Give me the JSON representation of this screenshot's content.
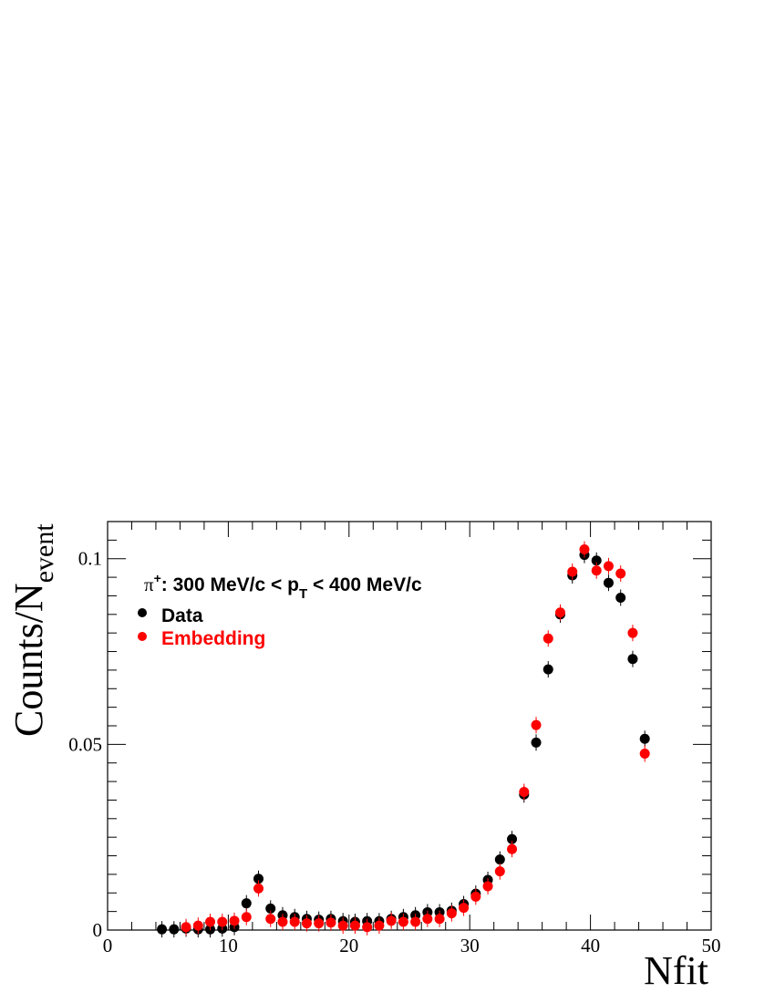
{
  "chart_data": {
    "type": "scatter",
    "xlabel": "Nfit",
    "ylabel_main": "Counts/N",
    "ylabel_sub": "event",
    "xlim": [
      0,
      50
    ],
    "ylim": [
      0,
      0.11
    ],
    "x_ticks": [
      0,
      10,
      20,
      30,
      40,
      50
    ],
    "x_tick_labels": [
      "0",
      "10",
      "20",
      "30",
      "40",
      "50"
    ],
    "y_ticks": [
      0,
      0.05,
      0.1
    ],
    "y_tick_labels": [
      "0",
      "0.05",
      "0.1"
    ],
    "grid": false,
    "legend_position": "top-left",
    "annotation": {
      "prefix": "π",
      "charge": "+",
      "mid": ": 300 MeV/c < p",
      "sub": "T",
      "suffix": " < 400 MeV/c"
    },
    "series": [
      {
        "name": "Data",
        "color": "#000000",
        "x": [
          4.5,
          5.5,
          6.5,
          7.5,
          8.5,
          9.5,
          10.5,
          11.5,
          12.5,
          13.5,
          14.5,
          15.5,
          16.5,
          17.5,
          18.5,
          19.5,
          20.5,
          21.5,
          22.5,
          23.5,
          24.5,
          25.5,
          26.5,
          27.5,
          28.5,
          29.5,
          30.5,
          31.5,
          32.5,
          33.5,
          34.5,
          35.5,
          36.5,
          37.5,
          38.5,
          39.5,
          40.5,
          41.5,
          42.5,
          43.5,
          44.5
        ],
        "y": [
          0.0002,
          0.0002,
          0.0004,
          0.0002,
          0.0002,
          0.0004,
          0.0008,
          0.0072,
          0.0138,
          0.0058,
          0.004,
          0.0035,
          0.003,
          0.0028,
          0.003,
          0.0024,
          0.0022,
          0.0024,
          0.0024,
          0.003,
          0.0035,
          0.004,
          0.0048,
          0.0048,
          0.0052,
          0.007,
          0.0098,
          0.0135,
          0.019,
          0.0245,
          0.0365,
          0.0505,
          0.0702,
          0.085,
          0.0955,
          0.101,
          0.0995,
          0.0935,
          0.0895,
          0.073,
          0.0515
        ]
      },
      {
        "name": "Embedding",
        "color": "#ff0000",
        "x": [
          6.5,
          7.5,
          8.5,
          9.5,
          10.5,
          11.5,
          12.5,
          13.5,
          14.5,
          15.5,
          16.5,
          17.5,
          18.5,
          19.5,
          20.5,
          21.5,
          22.5,
          23.5,
          24.5,
          25.5,
          26.5,
          27.5,
          28.5,
          29.5,
          30.5,
          31.5,
          32.5,
          33.5,
          34.5,
          35.5,
          36.5,
          37.5,
          38.5,
          39.5,
          40.5,
          41.5,
          42.5,
          43.5,
          44.5
        ],
        "y": [
          0.0008,
          0.0012,
          0.0022,
          0.0022,
          0.0025,
          0.0035,
          0.0112,
          0.003,
          0.0022,
          0.0022,
          0.0018,
          0.0018,
          0.002,
          0.0012,
          0.0012,
          0.0008,
          0.0012,
          0.0025,
          0.0022,
          0.0022,
          0.003,
          0.003,
          0.0045,
          0.006,
          0.009,
          0.0118,
          0.0158,
          0.0218,
          0.0372,
          0.0552,
          0.0785,
          0.0855,
          0.0965,
          0.1025,
          0.0968,
          0.098,
          0.096,
          0.08,
          0.0475
        ]
      }
    ]
  }
}
